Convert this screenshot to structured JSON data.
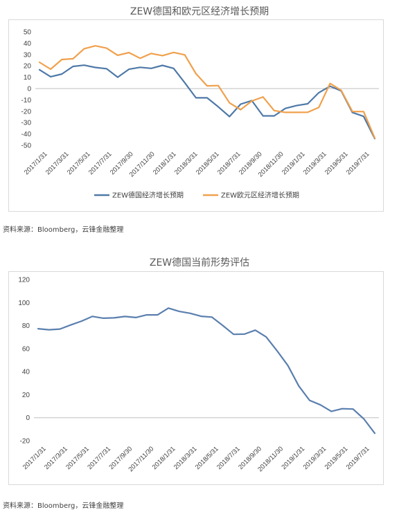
{
  "chart_data": [
    {
      "type": "line",
      "title": "ZEW德国和欧元区经济增长预期",
      "xlabel": "",
      "ylabel": "",
      "ylim": [
        -50,
        50
      ],
      "yticks": [
        "50",
        "40",
        "30",
        "20",
        "10",
        "0",
        "-10",
        "-20",
        "-30",
        "-40",
        "-50"
      ],
      "x_tick_labels": [
        "2017/1/31",
        "2017/3/31",
        "2017/5/31",
        "2017/7/31",
        "2017/9/30",
        "2017/11/30",
        "2018/1/31",
        "2018/3/31",
        "2018/5/31",
        "2018/7/31",
        "2018/9/30",
        "2018/11/30",
        "2019/1/31",
        "2019/3/31",
        "2019/5/31",
        "2019/7/31"
      ],
      "grid": false,
      "legend": "bottom",
      "series": [
        {
          "name": "ZEW德国经济增长预期",
          "color": "#4e79a7",
          "values": [
            16.6,
            10.4,
            12.8,
            19.5,
            20.6,
            18.6,
            17.5,
            10.0,
            17.0,
            18.7,
            17.8,
            20.4,
            17.8,
            5.1,
            -8.2,
            -8.2,
            -16.1,
            -24.7,
            -13.7,
            -10.6,
            -24.1,
            -24.1,
            -17.5,
            -15.0,
            -13.4,
            -3.6,
            2.1,
            -2.1,
            -21.1,
            -24.5,
            -44.1
          ]
        },
        {
          "name": "ZEW欧元区经济增长预期",
          "color": "#f0a04b",
          "values": [
            23.2,
            17.1,
            25.6,
            26.3,
            35.1,
            37.7,
            35.6,
            29.3,
            31.7,
            26.7,
            30.9,
            29.0,
            31.8,
            29.7,
            13.1,
            2.4,
            2.6,
            -12.6,
            -18.6,
            -11.0,
            -7.4,
            -19.4,
            -21.0,
            -21.0,
            -20.9,
            -16.6,
            4.5,
            -1.6,
            -20.2,
            -20.3,
            -43.6
          ]
        }
      ]
    },
    {
      "type": "line",
      "title": "ZEW德国当前形势评估",
      "xlabel": "",
      "ylabel": "",
      "ylim": [
        -20,
        120
      ],
      "yticks": [
        "120",
        "100",
        "80",
        "60",
        "40",
        "20",
        "0",
        "-20"
      ],
      "x_tick_labels": [
        "2017/1/31",
        "2017/3/31",
        "2017/5/31",
        "2017/7/31",
        "2017/9/30",
        "2017/11/30",
        "2018/1/31",
        "2018/3/31",
        "2018/5/31",
        "2018/7/31",
        "2018/9/30",
        "2018/11/30",
        "2019/1/31",
        "2019/3/31",
        "2019/5/31",
        "2019/7/31"
      ],
      "grid": false,
      "legend": "none",
      "series": [
        {
          "color": "#5a7fae",
          "values": [
            77.3,
            76.4,
            77.0,
            80.5,
            83.9,
            88.0,
            86.4,
            86.7,
            87.9,
            87.0,
            89.3,
            89.3,
            95.2,
            92.3,
            90.7,
            88.1,
            87.4,
            80.1,
            72.4,
            72.6,
            76.0,
            70.2,
            58.2,
            45.3,
            27.6,
            15.1,
            11.1,
            5.5,
            7.8,
            7.5,
            -1.1,
            -13.5
          ]
        }
      ]
    }
  ],
  "source_text_1": "资料来源：Bloomberg，云锋金融整理",
  "source_text_2": "资料来源：Bloomberg，云锋金融整理"
}
